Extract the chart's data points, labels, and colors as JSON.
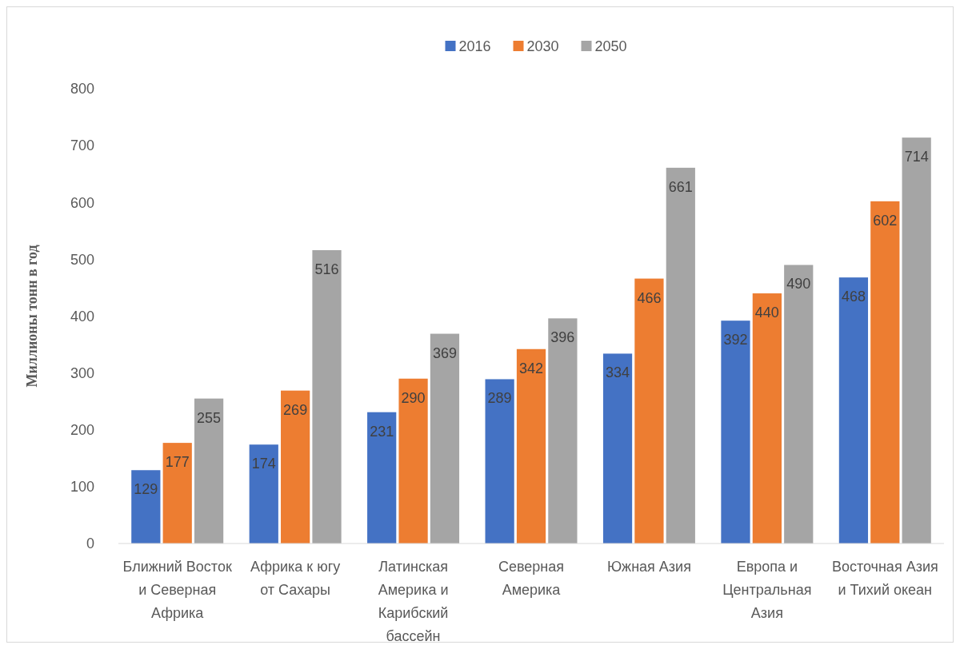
{
  "chart_data": {
    "type": "bar",
    "ylabel": "Миллионы тонн в год",
    "categories": [
      "Ближний Восток и Северная Африка",
      "Африка к югу от Сахары",
      "Латинская Америка и Карибский бассейн",
      "Северная Америка",
      "Южная Азия",
      "Европа и Центральная Азия",
      "Восточная Азия и Тихий океан"
    ],
    "series": [
      {
        "name": "2016",
        "color": "#4472c4",
        "values": [
          129,
          174,
          231,
          289,
          334,
          392,
          468
        ]
      },
      {
        "name": "2030",
        "color": "#ed7d31",
        "values": [
          177,
          269,
          290,
          342,
          466,
          440,
          602
        ]
      },
      {
        "name": "2050",
        "color": "#a5a5a5",
        "values": [
          255,
          516,
          369,
          396,
          661,
          490,
          714
        ]
      }
    ],
    "ylim": [
      0,
      800
    ],
    "yticks": [
      0,
      100,
      200,
      300,
      400,
      500,
      600,
      700,
      800
    ],
    "grid": false,
    "legend": "top",
    "data_labels": true
  }
}
